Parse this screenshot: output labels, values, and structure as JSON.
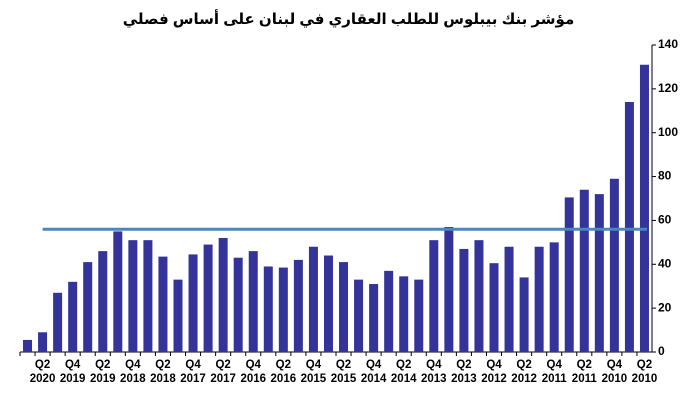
{
  "chart_data": {
    "type": "bar",
    "title": "مؤشر بنك بيبلوس للطلب العقاري في لبنان على أساس فصلي",
    "categories": [
      null,
      "Q2 2020",
      null,
      "Q4 2019",
      null,
      "Q2 2019",
      null,
      "Q4 2018",
      null,
      "Q2 2018",
      null,
      "Q4 2017",
      null,
      "Q2 2017",
      null,
      "Q4 2016",
      null,
      "Q2 2016",
      null,
      "Q4 2015",
      null,
      "Q2 2015",
      null,
      "Q4 2014",
      null,
      "Q2 2014",
      null,
      "Q4 2013",
      null,
      "Q2 2013",
      null,
      "Q4 2012",
      null,
      "Q2 2012",
      null,
      "Q4 2011",
      null,
      "Q2 2011",
      null,
      "Q4 2010",
      null,
      "Q2 2010"
    ],
    "values": [
      5.5,
      9,
      27,
      32,
      41,
      46,
      55,
      51,
      51,
      43.5,
      33,
      44.5,
      49,
      52,
      43,
      46,
      39,
      38.5,
      42,
      48,
      44,
      41,
      33,
      31,
      37,
      34.5,
      33,
      51,
      57,
      47,
      51,
      40.5,
      48,
      34,
      48,
      50,
      70.5,
      74,
      72,
      79,
      114,
      131
    ],
    "color": "#333399",
    "reference_line": 56,
    "reference_color": "#4a86c0",
    "ylim": [
      0,
      140
    ],
    "yticks": [
      0,
      20,
      40,
      60,
      80,
      100,
      120,
      140
    ],
    "y_axis_side": "right",
    "grid": false
  }
}
